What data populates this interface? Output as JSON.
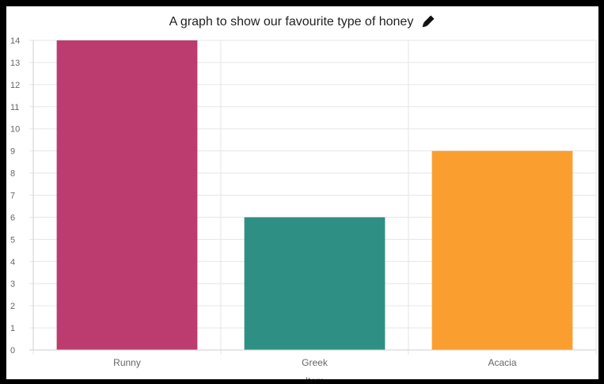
{
  "chart_data": {
    "type": "bar",
    "title": "A graph to show our favourite type of honey",
    "categories": [
      "Runny",
      "Greek",
      "Acacia"
    ],
    "values": [
      14,
      6,
      9
    ],
    "colors": [
      "#bc3c6f",
      "#2e8f84",
      "#fb9e30"
    ],
    "xlabel": "Item",
    "ylabel": "",
    "ylim": [
      0,
      14
    ],
    "yticks": [
      0,
      1,
      2,
      3,
      4,
      5,
      6,
      7,
      8,
      9,
      10,
      11,
      12,
      13,
      14
    ],
    "grid": true,
    "legend": "none"
  },
  "icons": {
    "edit": "pencil-icon"
  }
}
